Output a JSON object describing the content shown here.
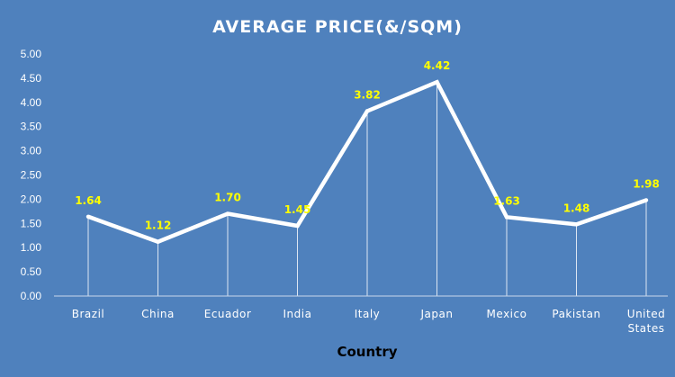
{
  "chart_data": {
    "type": "line",
    "title": "AVERAGE PRICE(&/SQM)",
    "xlabel": "Country",
    "categories": [
      "Brazil",
      "China",
      "Ecuador",
      "India",
      "Italy",
      "Japan",
      "Mexico",
      "Pakistan",
      "United States"
    ],
    "values": [
      1.64,
      1.12,
      1.7,
      1.45,
      3.82,
      4.42,
      1.63,
      1.48,
      1.98
    ],
    "data_labels": [
      "1.64",
      "1.12",
      "1.70",
      "1.45",
      "3.82",
      "4.42",
      "1.63",
      "1.48",
      "1.98"
    ],
    "ylim": [
      0,
      5
    ],
    "yticks": [
      "0.00",
      "0.50",
      "1.00",
      "1.50",
      "2.00",
      "2.50",
      "3.00",
      "3.50",
      "4.00",
      "4.50",
      "5.00"
    ],
    "grid": false,
    "drop_lines": true,
    "colors": {
      "background": "#4f81bd",
      "line": "#ffffff",
      "data_label": "#ffff00",
      "text": "#ffffff",
      "axis_title": "#000000"
    }
  }
}
